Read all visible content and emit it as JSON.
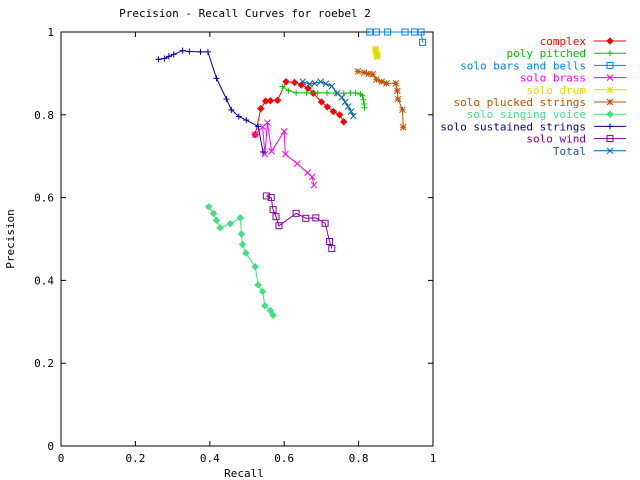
{
  "chart_data": {
    "type": "line",
    "title": "Precision - Recall Curves for roebel 2",
    "xlabel": "Recall",
    "ylabel": "Precision",
    "xlim": [
      0,
      1
    ],
    "ylim": [
      0,
      1
    ],
    "x_ticks": [
      "0",
      "0.2",
      "0.4",
      "0.6",
      "0.8",
      "1"
    ],
    "y_ticks": [
      "0",
      "0.2",
      "0.4",
      "0.6",
      "0.8",
      "1"
    ],
    "grid": false,
    "legend_position": "top-right, outside plot",
    "series": [
      {
        "name": "complex",
        "color": "#ff0000",
        "marker": "diamond",
        "points": [
          [
            0.522,
            0.752
          ],
          [
            0.537,
            0.815
          ],
          [
            0.55,
            0.833
          ],
          [
            0.563,
            0.834
          ],
          [
            0.582,
            0.835
          ],
          [
            0.605,
            0.88
          ],
          [
            0.628,
            0.878
          ],
          [
            0.646,
            0.872
          ],
          [
            0.664,
            0.864
          ],
          [
            0.678,
            0.852
          ],
          [
            0.7,
            0.831
          ],
          [
            0.716,
            0.819
          ],
          [
            0.732,
            0.808
          ],
          [
            0.749,
            0.8
          ],
          [
            0.76,
            0.783
          ]
        ]
      },
      {
        "name": "poly pitched",
        "color": "#00c000",
        "marker": "plus",
        "points": [
          [
            0.595,
            0.868
          ],
          [
            0.612,
            0.858
          ],
          [
            0.632,
            0.853
          ],
          [
            0.66,
            0.853
          ],
          [
            0.69,
            0.853
          ],
          [
            0.715,
            0.853
          ],
          [
            0.74,
            0.852
          ],
          [
            0.76,
            0.852
          ],
          [
            0.778,
            0.853
          ],
          [
            0.792,
            0.853
          ],
          [
            0.805,
            0.85
          ],
          [
            0.81,
            0.846
          ],
          [
            0.813,
            0.836
          ],
          [
            0.815,
            0.826
          ],
          [
            0.816,
            0.817
          ]
        ]
      },
      {
        "name": "solo bars and bells",
        "color": "#0080ff",
        "marker": "square",
        "points": [
          [
            0.83,
            1.0
          ],
          [
            0.848,
            1.0
          ],
          [
            0.878,
            1.0
          ],
          [
            0.925,
            1.0
          ],
          [
            0.95,
            1.0
          ],
          [
            0.968,
            1.0
          ],
          [
            0.972,
            0.975
          ]
        ]
      },
      {
        "name": "solo brass",
        "color": "#ff00ff",
        "marker": "x",
        "points": [
          [
            0.522,
            0.752
          ],
          [
            0.542,
            0.771
          ],
          [
            0.548,
            0.705
          ],
          [
            0.555,
            0.781
          ],
          [
            0.566,
            0.712
          ],
          [
            0.6,
            0.76
          ],
          [
            0.603,
            0.705
          ],
          [
            0.635,
            0.682
          ],
          [
            0.663,
            0.66
          ],
          [
            0.675,
            0.65
          ],
          [
            0.68,
            0.63
          ]
        ]
      },
      {
        "name": "solo drum",
        "color": "#dddd00",
        "marker": "star",
        "points": [
          [
            0.845,
            0.96
          ],
          [
            0.846,
            0.957
          ],
          [
            0.847,
            0.953
          ],
          [
            0.848,
            0.949
          ],
          [
            0.849,
            0.945
          ],
          [
            0.85,
            0.942
          ],
          [
            0.851,
            0.94
          ]
        ]
      },
      {
        "name": "solo plucked strings",
        "color": "#c05000",
        "marker": "star",
        "points": [
          [
            0.798,
            0.905
          ],
          [
            0.815,
            0.902
          ],
          [
            0.827,
            0.899
          ],
          [
            0.838,
            0.898
          ],
          [
            0.848,
            0.885
          ],
          [
            0.862,
            0.88
          ],
          [
            0.875,
            0.876
          ],
          [
            0.9,
            0.876
          ],
          [
            0.904,
            0.858
          ],
          [
            0.906,
            0.838
          ],
          [
            0.918,
            0.812
          ],
          [
            0.92,
            0.77
          ]
        ]
      },
      {
        "name": "solo singing voice",
        "color": "#40e080",
        "marker": "diamond",
        "points": [
          [
            0.397,
            0.578
          ],
          [
            0.41,
            0.562
          ],
          [
            0.418,
            0.545
          ],
          [
            0.428,
            0.527
          ],
          [
            0.455,
            0.537
          ],
          [
            0.482,
            0.551
          ],
          [
            0.485,
            0.512
          ],
          [
            0.488,
            0.487
          ],
          [
            0.497,
            0.466
          ],
          [
            0.522,
            0.433
          ],
          [
            0.53,
            0.389
          ],
          [
            0.542,
            0.373
          ],
          [
            0.548,
            0.339
          ],
          [
            0.563,
            0.327
          ],
          [
            0.57,
            0.316
          ]
        ]
      },
      {
        "name": "solo sustained strings",
        "color": "#0000a0",
        "marker": "plus",
        "points": [
          [
            0.262,
            0.934
          ],
          [
            0.278,
            0.936
          ],
          [
            0.29,
            0.941
          ],
          [
            0.303,
            0.946
          ],
          [
            0.327,
            0.955
          ],
          [
            0.345,
            0.953
          ],
          [
            0.375,
            0.952
          ],
          [
            0.395,
            0.952
          ],
          [
            0.418,
            0.888
          ],
          [
            0.445,
            0.838
          ],
          [
            0.458,
            0.812
          ],
          [
            0.478,
            0.796
          ],
          [
            0.498,
            0.787
          ],
          [
            0.53,
            0.772
          ],
          [
            0.543,
            0.71
          ]
        ]
      },
      {
        "name": "solo wind",
        "color": "#8000a0",
        "marker": "square",
        "points": [
          [
            0.552,
            0.604
          ],
          [
            0.565,
            0.6
          ],
          [
            0.57,
            0.571
          ],
          [
            0.578,
            0.554
          ],
          [
            0.586,
            0.532
          ],
          [
            0.632,
            0.562
          ],
          [
            0.658,
            0.55
          ],
          [
            0.685,
            0.551
          ],
          [
            0.71,
            0.538
          ],
          [
            0.722,
            0.494
          ],
          [
            0.728,
            0.477
          ]
        ]
      },
      {
        "name": "Total",
        "color": "#0060a0",
        "marker": "x",
        "points": [
          [
            0.65,
            0.88
          ],
          [
            0.668,
            0.874
          ],
          [
            0.682,
            0.876
          ],
          [
            0.698,
            0.88
          ],
          [
            0.712,
            0.875
          ],
          [
            0.728,
            0.869
          ],
          [
            0.742,
            0.852
          ],
          [
            0.755,
            0.842
          ],
          [
            0.764,
            0.831
          ],
          [
            0.772,
            0.82
          ],
          [
            0.78,
            0.808
          ],
          [
            0.786,
            0.797
          ]
        ]
      }
    ]
  }
}
